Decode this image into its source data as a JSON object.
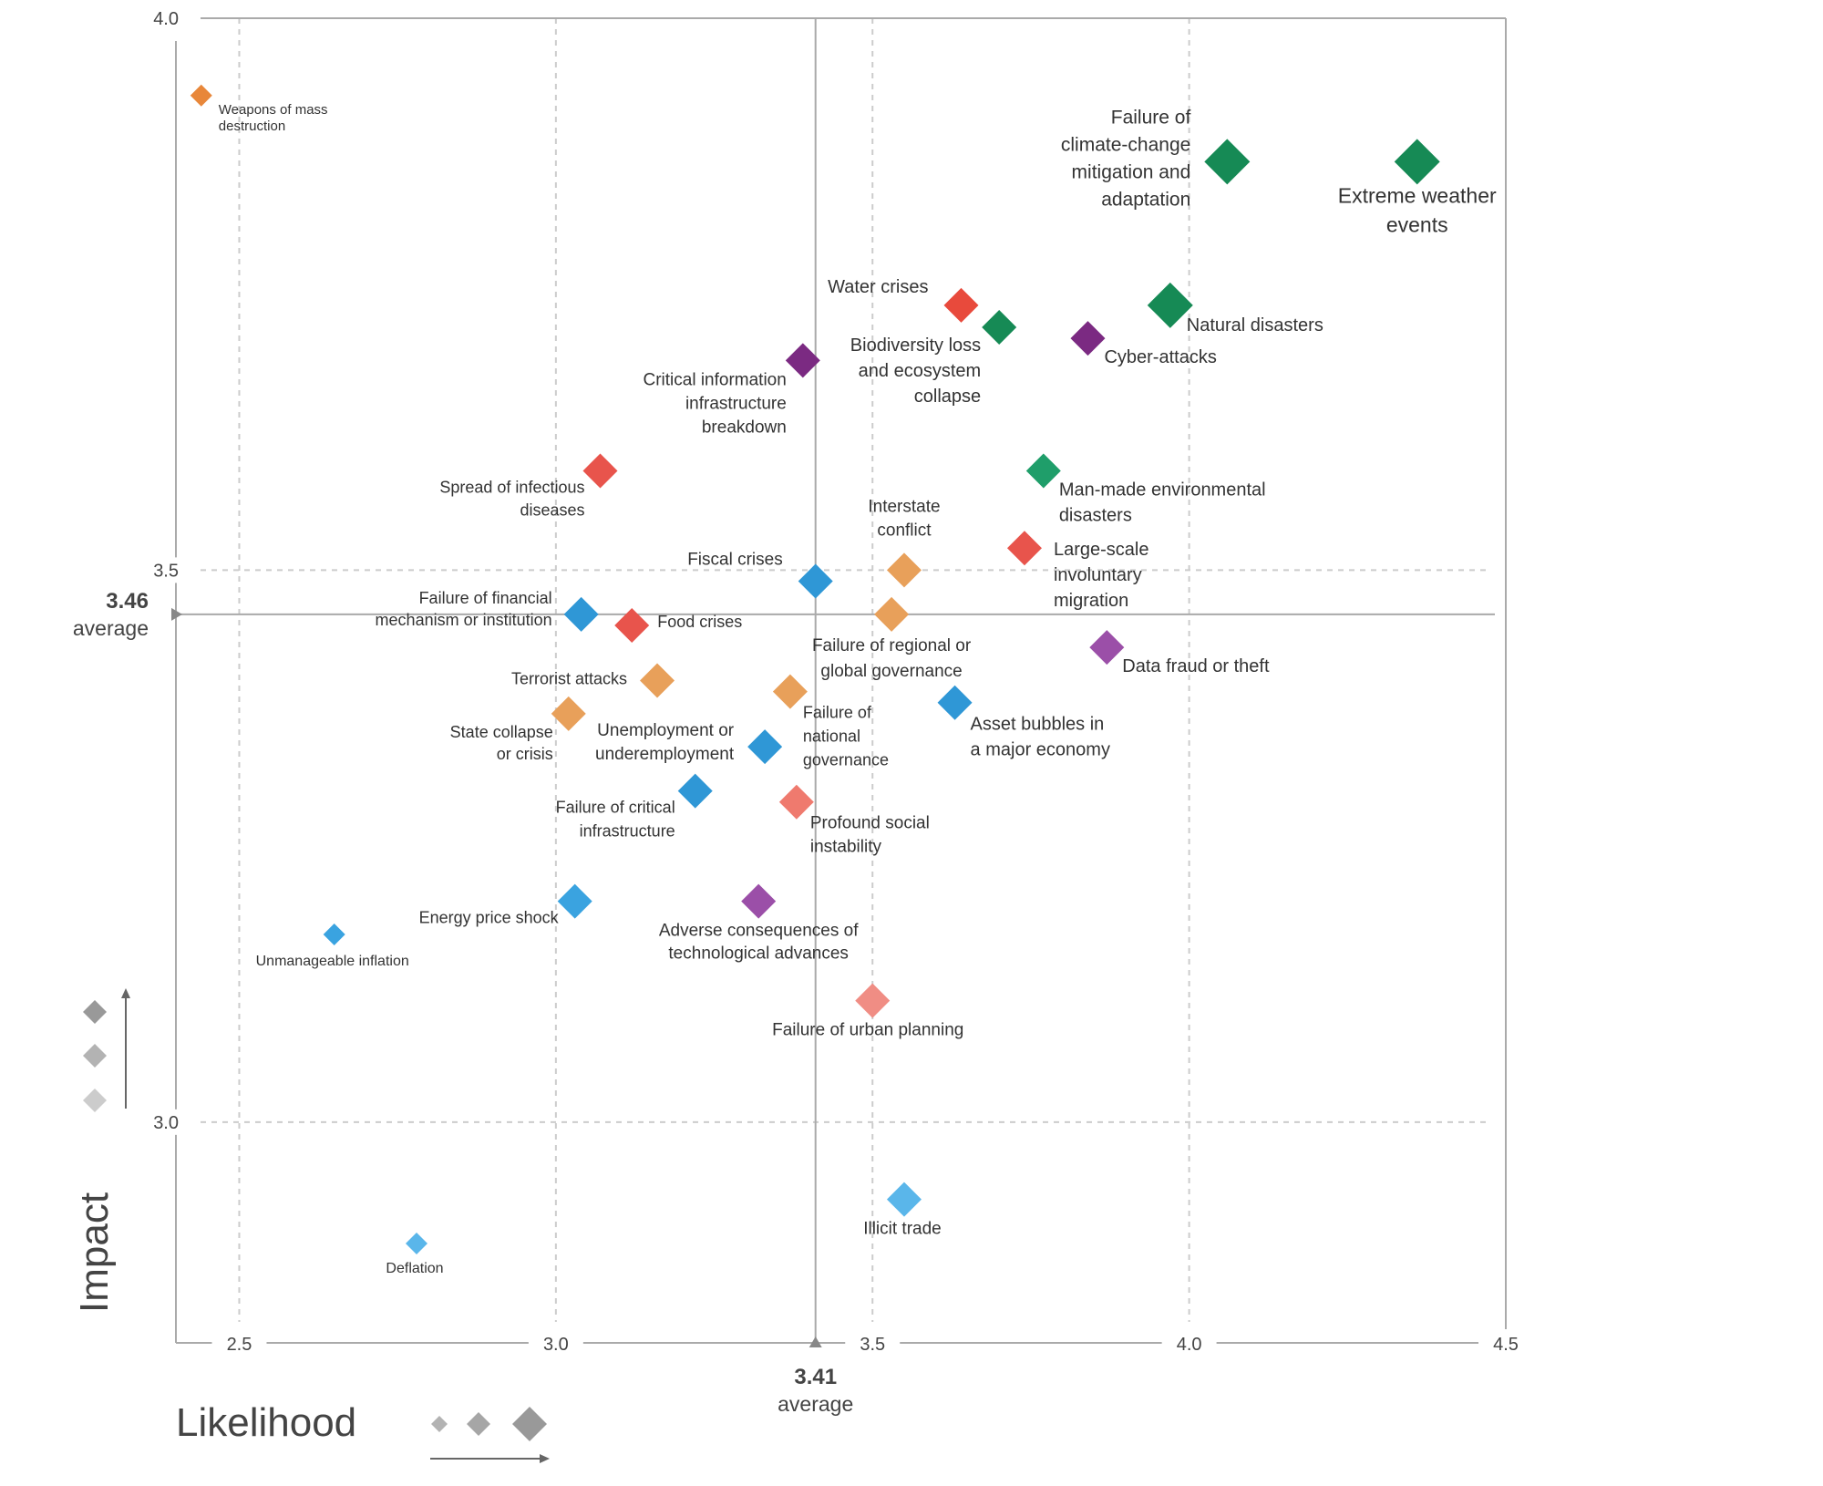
{
  "chart_data": {
    "type": "scatter",
    "xlabel": "Likelihood",
    "ylabel": "Impact",
    "xlim": [
      2.4,
      4.5
    ],
    "ylim": [
      2.8,
      4.0
    ],
    "x_ticks": [
      {
        "value": 2.5,
        "label": "2.5"
      },
      {
        "value": 3.0,
        "label": "3.0"
      },
      {
        "value": 3.5,
        "label": "3.5"
      },
      {
        "value": 4.0,
        "label": "4.0"
      },
      {
        "value": 4.5,
        "label": "4.5"
      }
    ],
    "y_ticks": [
      {
        "value": 3.0,
        "label": "3.0"
      },
      {
        "value": 3.5,
        "label": "3.5"
      },
      {
        "value": 4.0,
        "label": "4.0"
      }
    ],
    "x_average": {
      "value": 3.41,
      "label": "3.41",
      "sublabel": "average"
    },
    "y_average": {
      "value": 3.46,
      "label": "3.46",
      "sublabel": "average"
    },
    "grid": true,
    "colors": {
      "environmental": "#168a55",
      "technological": "#7b2a82",
      "societal": "#e8544c",
      "geopolitical": "#e88a3a",
      "economic": "#2f97d6",
      "axis": "#aaaaaa",
      "grid": "#cccccc",
      "text": "#444444",
      "legend_marker": "#999999"
    },
    "points": [
      {
        "name": "Weapons of mass destruction",
        "lines": [
          "Weapons of mass",
          "destruction"
        ],
        "x": 2.44,
        "y": 3.93,
        "size": 1,
        "color": "#e8873a"
      },
      {
        "name": "Failure of climate-change mitigation and adaptation",
        "lines": [
          "Failure of",
          "climate-change",
          "mitigation and",
          "adaptation"
        ],
        "x": 4.06,
        "y": 3.87,
        "size": 3,
        "color": "#168a55"
      },
      {
        "name": "Extreme weather events",
        "lines": [
          "Extreme weather",
          "events"
        ],
        "x": 4.36,
        "y": 3.87,
        "size": 3,
        "color": "#168a55"
      },
      {
        "name": "Water crises",
        "lines": [
          "Water crises"
        ],
        "x": 3.64,
        "y": 3.74,
        "size": 2,
        "color": "#e84a3c"
      },
      {
        "name": "Natural disasters",
        "lines": [
          "Natural disasters"
        ],
        "x": 3.97,
        "y": 3.74,
        "size": 3,
        "color": "#168a55"
      },
      {
        "name": "Biodiversity loss and ecosystem collapse",
        "lines": [
          "Biodiversity loss",
          "and ecosystem",
          "collapse"
        ],
        "x": 3.7,
        "y": 3.72,
        "size": 2,
        "color": "#168a55"
      },
      {
        "name": "Cyber-attacks",
        "lines": [
          "Cyber-attacks"
        ],
        "x": 3.84,
        "y": 3.71,
        "size": 2,
        "color": "#7b2a82"
      },
      {
        "name": "Critical information infrastructure breakdown",
        "lines": [
          "Critical information",
          "infrastructure",
          "breakdown"
        ],
        "x": 3.39,
        "y": 3.69,
        "size": 2,
        "color": "#7b2a82"
      },
      {
        "name": "Spread of infectious diseases",
        "lines": [
          "Spread of infectious",
          "diseases"
        ],
        "x": 3.07,
        "y": 3.59,
        "size": 2,
        "color": "#e8544c"
      },
      {
        "name": "Man-made environmental disasters",
        "lines": [
          "Man-made environmental",
          "disasters"
        ],
        "x": 3.77,
        "y": 3.59,
        "size": 2,
        "color": "#1f9e6a"
      },
      {
        "name": "Large-scale involuntary migration",
        "lines": [
          "Large-scale",
          "involuntary",
          "migration"
        ],
        "x": 3.74,
        "y": 3.52,
        "size": 2,
        "color": "#e8544c"
      },
      {
        "name": "Interstate conflict",
        "lines": [
          "Interstate",
          "conflict"
        ],
        "x": 3.55,
        "y": 3.5,
        "size": 2,
        "color": "#e8a05a"
      },
      {
        "name": "Fiscal crises",
        "lines": [
          "Fiscal crises"
        ],
        "x": 3.41,
        "y": 3.49,
        "size": 2,
        "color": "#2f97d6"
      },
      {
        "name": "Failure of regional or global governance",
        "lines": [
          "Failure of regional or",
          "global governance"
        ],
        "x": 3.53,
        "y": 3.46,
        "size": 2,
        "color": "#e8a05a"
      },
      {
        "name": "Failure of financial mechanism or institution",
        "lines": [
          "Failure of financial",
          "mechanism or institution"
        ],
        "x": 3.04,
        "y": 3.46,
        "size": 2,
        "color": "#2f97d6"
      },
      {
        "name": "Food crises",
        "lines": [
          "Food crises"
        ],
        "x": 3.12,
        "y": 3.45,
        "size": 2,
        "color": "#e8544c"
      },
      {
        "name": "Data fraud or theft",
        "lines": [
          "Data fraud or theft"
        ],
        "x": 3.87,
        "y": 3.43,
        "size": 2,
        "color": "#9b4fa8"
      },
      {
        "name": "Terrorist attacks",
        "lines": [
          "Terrorist attacks"
        ],
        "x": 3.16,
        "y": 3.4,
        "size": 2,
        "color": "#e8a05a"
      },
      {
        "name": "Failure of national governance",
        "lines": [
          "Failure of",
          "national",
          "governance"
        ],
        "x": 3.37,
        "y": 3.39,
        "size": 2,
        "color": "#e8a05a"
      },
      {
        "name": "State collapse or crisis",
        "lines": [
          "State collapse",
          "or crisis"
        ],
        "x": 3.02,
        "y": 3.37,
        "size": 2,
        "color": "#e8a05a"
      },
      {
        "name": "Asset bubbles in a major economy",
        "lines": [
          "Asset bubbles in",
          "a major economy"
        ],
        "x": 3.63,
        "y": 3.38,
        "size": 2,
        "color": "#2f97d6"
      },
      {
        "name": "Unemployment or underemployment",
        "lines": [
          "Unemployment or",
          "underemployment"
        ],
        "x": 3.33,
        "y": 3.34,
        "size": 2,
        "color": "#2f97d6"
      },
      {
        "name": "Failure of critical infrastructure",
        "lines": [
          "Failure of critical",
          "infrastructure"
        ],
        "x": 3.22,
        "y": 3.3,
        "size": 2,
        "color": "#2f97d6"
      },
      {
        "name": "Profound social instability",
        "lines": [
          "Profound social",
          "instability"
        ],
        "x": 3.38,
        "y": 3.29,
        "size": 2,
        "color": "#ef7a6e"
      },
      {
        "name": "Energy price shock",
        "lines": [
          "Energy price shock"
        ],
        "x": 3.03,
        "y": 3.2,
        "size": 2,
        "color": "#3aa3e0"
      },
      {
        "name": "Adverse consequences of technological advances",
        "lines": [
          "Adverse consequences of",
          "technological advances"
        ],
        "x": 3.32,
        "y": 3.2,
        "size": 2,
        "color": "#9b4fa8"
      },
      {
        "name": "Unmanageable inflation",
        "lines": [
          "Unmanageable inflation"
        ],
        "x": 2.65,
        "y": 3.17,
        "size": 1,
        "color": "#3aa3e0"
      },
      {
        "name": "Failure of urban planning",
        "lines": [
          "Failure of urban planning"
        ],
        "x": 3.5,
        "y": 3.11,
        "size": 2,
        "color": "#f08d84"
      },
      {
        "name": "Illicit trade",
        "lines": [
          "Illicit trade"
        ],
        "x": 3.55,
        "y": 2.93,
        "size": 2,
        "color": "#5ab6ea"
      },
      {
        "name": "Deflation",
        "lines": [
          "Deflation"
        ],
        "x": 2.78,
        "y": 2.89,
        "size": 1,
        "color": "#5ab6ea"
      }
    ]
  }
}
